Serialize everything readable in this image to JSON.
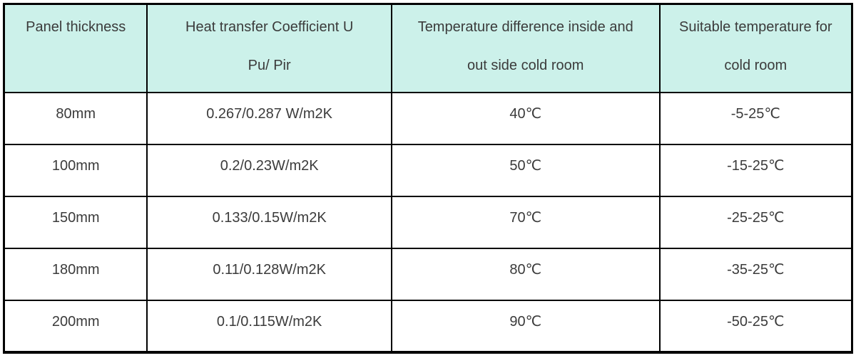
{
  "table": {
    "title_semantic": "cold-room-panel-specifications",
    "headers": [
      {
        "line1": "Panel thickness",
        "line2": ""
      },
      {
        "line1": "Heat transfer Coefficient U",
        "line2": "Pu/ Pir"
      },
      {
        "line1": "Temperature difference inside and",
        "line2": "out side cold room"
      },
      {
        "line1": "Suitable temperature for",
        "line2": "cold room"
      }
    ],
    "rows": [
      {
        "thickness": "80mm",
        "coefficient": "0.267/0.287 W/m2K",
        "temp_diff": "40℃",
        "suitable": "-5-25℃"
      },
      {
        "thickness": "100mm",
        "coefficient": "0.2/0.23W/m2K",
        "temp_diff": "50℃",
        "suitable": "-15-25℃"
      },
      {
        "thickness": "150mm",
        "coefficient": "0.133/0.15W/m2K",
        "temp_diff": "70℃",
        "suitable": "-25-25℃"
      },
      {
        "thickness": "180mm",
        "coefficient": "0.11/0.128W/m2K",
        "temp_diff": "80℃",
        "suitable": "-35-25℃"
      },
      {
        "thickness": "200mm",
        "coefficient": "0.1/0.115W/m2K",
        "temp_diff": "90℃",
        "suitable": "-50-25℃"
      }
    ],
    "colors": {
      "header_background": "#ccf1ea",
      "border": "#000000",
      "text": "#3b3b3b"
    }
  }
}
